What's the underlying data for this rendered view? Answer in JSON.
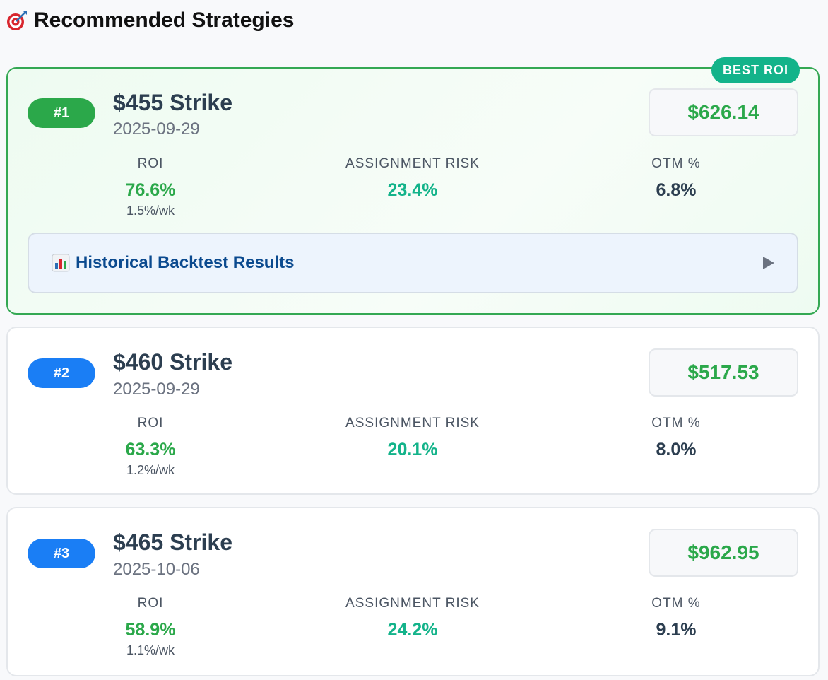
{
  "heading": {
    "title": "Recommended Strategies",
    "icon": "target-icon"
  },
  "labels": {
    "roi": "ROI",
    "assignment_risk": "ASSIGNMENT RISK",
    "otm": "OTM %"
  },
  "best_badge": "BEST ROI",
  "backtest": {
    "label": "Historical Backtest Results",
    "icon": "bar-chart-icon"
  },
  "colors": {
    "green": "#2ba84a",
    "teal": "#13b38a",
    "blue": "#1a7ef5",
    "badge": "#13b38a"
  },
  "strategies": [
    {
      "rank": "#1",
      "strike": "$455 Strike",
      "date": "2025-09-29",
      "premium": "$626.14",
      "roi": "76.6%",
      "roi_weekly": "1.5%/wk",
      "assignment_risk": "23.4%",
      "otm": "6.8%"
    },
    {
      "rank": "#2",
      "strike": "$460 Strike",
      "date": "2025-09-29",
      "premium": "$517.53",
      "roi": "63.3%",
      "roi_weekly": "1.2%/wk",
      "assignment_risk": "20.1%",
      "otm": "8.0%"
    },
    {
      "rank": "#3",
      "strike": "$465 Strike",
      "date": "2025-10-06",
      "premium": "$962.95",
      "roi": "58.9%",
      "roi_weekly": "1.1%/wk",
      "assignment_risk": "24.2%",
      "otm": "9.1%"
    }
  ]
}
